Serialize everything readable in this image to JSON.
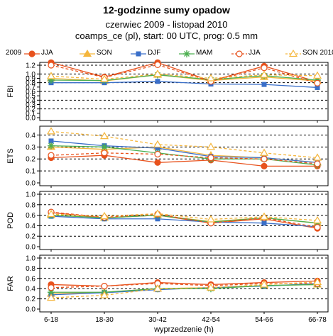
{
  "chart_data": {
    "type": "line",
    "title": "12-godzinne sumy opadow",
    "subtitle_1": "czerwiec 2009 - listopad 2010",
    "subtitle_2": "coamps_ce (pl), start: 00 UTC, prog: 0.5 mm",
    "legend_lead": "2009",
    "xlabel": "wyprzedzenie (h)",
    "categories": [
      "6-18",
      "18-30",
      "30-42",
      "42-54",
      "54-66",
      "66-78"
    ],
    "series": [
      {
        "name": "JJA",
        "color": "#e8521d",
        "line": "solid",
        "marker": "circle"
      },
      {
        "name": "SON",
        "color": "#f5b63c",
        "line": "solid",
        "marker": "triangle"
      },
      {
        "name": "DJF",
        "color": "#3a6fc9",
        "line": "solid",
        "marker": "square"
      },
      {
        "name": "MAM",
        "color": "#4caf50",
        "line": "solid",
        "marker": "star"
      },
      {
        "name": "JJA",
        "color": "#e8521d",
        "line": "dashed",
        "marker": "circle-open"
      },
      {
        "name": "SON 2010",
        "color": "#f5b63c",
        "line": "dashed",
        "marker": "triangle-open"
      }
    ],
    "panels": [
      {
        "ylabel": "FBI",
        "ylim": [
          0,
          1.2
        ],
        "yticks": [
          "0.0",
          "0.1",
          "0.2",
          "0.3",
          "0.4",
          "0.5",
          "0.6",
          "0.7",
          "0.8",
          "0.9",
          "1.0",
          "1.2"
        ],
        "tick_values": [
          0.0,
          0.1,
          0.2,
          0.3,
          0.4,
          0.5,
          0.6,
          0.7,
          0.8,
          0.9,
          1.0,
          1.2
        ],
        "grid_values": [
          0.2,
          0.4,
          0.6,
          0.8,
          1.0,
          1.2
        ],
        "values": [
          [
            1.26,
            0.93,
            1.26,
            0.84,
            1.18,
            0.82
          ],
          [
            0.9,
            0.84,
            0.98,
            0.85,
            0.93,
            0.84
          ],
          [
            0.8,
            0.8,
            0.83,
            0.77,
            0.76,
            0.69
          ],
          [
            0.86,
            0.85,
            0.98,
            0.87,
            0.96,
            0.86
          ],
          [
            1.2,
            0.92,
            1.21,
            0.83,
            1.14,
            0.79
          ],
          [
            0.95,
            0.88,
            1.0,
            0.9,
            0.98,
            0.96
          ]
        ]
      },
      {
        "ylabel": "ETS",
        "ylim": [
          0,
          0.45
        ],
        "yticks": [
          "0.0",
          "0.1",
          "0.2",
          "0.3",
          "0.4"
        ],
        "tick_values": [
          0.0,
          0.1,
          0.2,
          0.3,
          0.4
        ],
        "grid_values": [
          0.1,
          0.2,
          0.3,
          0.4
        ],
        "values": [
          [
            0.21,
            0.23,
            0.17,
            0.19,
            0.14,
            0.14
          ],
          [
            0.3,
            0.28,
            0.3,
            0.23,
            0.21,
            0.17
          ],
          [
            0.35,
            0.31,
            0.29,
            0.22,
            0.21,
            0.17
          ],
          [
            0.31,
            0.3,
            0.25,
            0.2,
            0.2,
            0.15
          ],
          [
            0.23,
            0.25,
            0.24,
            0.21,
            0.2,
            0.16
          ],
          [
            0.43,
            0.39,
            0.32,
            0.3,
            0.25,
            0.21
          ]
        ]
      },
      {
        "ylabel": "POD",
        "ylim": [
          0,
          1.0
        ],
        "yticks": [
          "0.0",
          "0.2",
          "0.4",
          "0.6",
          "0.8",
          "1.0"
        ],
        "tick_values": [
          0.0,
          0.2,
          0.4,
          0.6,
          0.8,
          1.0
        ],
        "grid_values": [
          0.2,
          0.4,
          0.6,
          0.8,
          1.0
        ],
        "values": [
          [
            0.65,
            0.55,
            0.6,
            0.45,
            0.53,
            0.35
          ],
          [
            0.6,
            0.55,
            0.6,
            0.48,
            0.55,
            0.45
          ],
          [
            0.58,
            0.53,
            0.53,
            0.47,
            0.45,
            0.38
          ],
          [
            0.6,
            0.55,
            0.6,
            0.47,
            0.55,
            0.45
          ],
          [
            0.66,
            0.56,
            0.62,
            0.45,
            0.55,
            0.37
          ],
          [
            0.62,
            0.58,
            0.63,
            0.52,
            0.57,
            0.5
          ]
        ]
      },
      {
        "ylabel": "FAR",
        "ylim": [
          0,
          1.0
        ],
        "yticks": [
          "0.0",
          "0.2",
          "0.4",
          "0.6",
          "0.8",
          "1.0"
        ],
        "tick_values": [
          0.0,
          0.2,
          0.4,
          0.6,
          0.8,
          1.0
        ],
        "grid_values": [
          0.2,
          0.4,
          0.6,
          0.8,
          1.0
        ],
        "values": [
          [
            0.48,
            0.45,
            0.52,
            0.48,
            0.52,
            0.55
          ],
          [
            0.3,
            0.33,
            0.4,
            0.42,
            0.46,
            0.48
          ],
          [
            0.28,
            0.32,
            0.38,
            0.42,
            0.45,
            0.5
          ],
          [
            0.33,
            0.33,
            0.4,
            0.4,
            0.46,
            0.48
          ],
          [
            0.42,
            0.45,
            0.5,
            0.46,
            0.5,
            0.5
          ],
          [
            0.22,
            0.27,
            0.4,
            0.42,
            0.48,
            0.53
          ]
        ]
      }
    ]
  }
}
